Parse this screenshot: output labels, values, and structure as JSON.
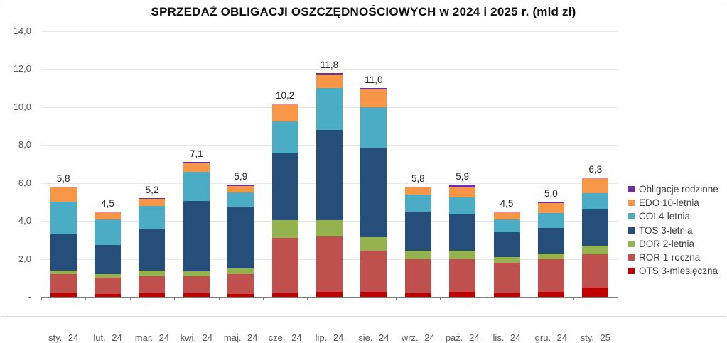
{
  "title": "SPRZEDAŻ OBLIGACJI OSZCZĘDNOŚCIOWYCH w 2024 i 2025 r. (mld zł)",
  "palette": {
    "gridline": "#e8e8e8",
    "axis_line": "#7f7f7f",
    "axis_text": "#595959",
    "value_label_text": "#262626",
    "legend_text": "#404040",
    "background": "#ffffff"
  },
  "chart_data": {
    "type": "bar",
    "stacked": true,
    "title": "SPRZEDAŻ OBLIGACJI OSZCZĘDNOŚCIOWYCH w 2024 i 2025 r. (mld zł)",
    "unit": "mld zł",
    "grid": true,
    "legend_position": "right",
    "categories": [
      "sty. 24",
      "lut. 24",
      "mar. 24",
      "kwi. 24",
      "maj. 24",
      "cze. 24",
      "lip. 24",
      "sie. 24",
      "wrz. 24",
      "paź. 24",
      "lis. 24",
      "gru. 24",
      "sty. 25"
    ],
    "totals": [
      5.8,
      4.5,
      5.2,
      7.1,
      5.9,
      10.2,
      11.8,
      11.0,
      5.8,
      5.9,
      4.5,
      5.0,
      6.3
    ],
    "totals_labels": [
      "5,8",
      "4,5",
      "5,2",
      "7,1",
      "5,9",
      "10,2",
      "11,8",
      "11,0",
      "5,8",
      "5,9",
      "4,5",
      "5,0",
      "6,3"
    ],
    "y_axis": {
      "min": 0,
      "max": 14,
      "step": 2,
      "tick_labels_top_to_bottom": [
        "14,0",
        "12,0",
        "10,0",
        "8,0",
        "6,0",
        "4,0",
        "2,0",
        "-"
      ]
    },
    "series": [
      {
        "name": "Obligacje rodzinne",
        "color": "#7030a0",
        "values": [
          0.05,
          0.05,
          0.05,
          0.05,
          0.05,
          0.05,
          0.1,
          0.05,
          0.05,
          0.15,
          0.05,
          0.05,
          0.05
        ]
      },
      {
        "name": "EDO 10-letnia",
        "color": "#f79646",
        "values": [
          0.75,
          0.35,
          0.35,
          0.45,
          0.35,
          0.9,
          0.7,
          0.95,
          0.35,
          0.5,
          0.35,
          0.55,
          0.8
        ]
      },
      {
        "name": "COI 4-letnia",
        "color": "#4bacc6",
        "values": [
          1.7,
          1.35,
          1.2,
          1.55,
          0.75,
          1.7,
          2.2,
          2.15,
          0.9,
          0.9,
          0.7,
          0.75,
          0.85
        ]
      },
      {
        "name": "TOS 3-letnia",
        "color": "#254e7b",
        "values": [
          1.9,
          1.55,
          2.2,
          3.7,
          3.25,
          3.5,
          4.75,
          4.7,
          2.05,
          1.9,
          1.3,
          1.35,
          1.9
        ]
      },
      {
        "name": "DOR 2-letnia",
        "color": "#94b34f",
        "values": [
          0.2,
          0.2,
          0.3,
          0.25,
          0.3,
          0.95,
          0.85,
          0.7,
          0.45,
          0.45,
          0.3,
          0.3,
          0.45
        ]
      },
      {
        "name": "ROR 1-roczna",
        "color": "#c0504d",
        "values": [
          1.0,
          0.85,
          0.9,
          0.9,
          1.05,
          2.9,
          2.95,
          2.2,
          1.8,
          1.75,
          1.6,
          1.75,
          1.75
        ]
      },
      {
        "name": "OTS 3-miesięczna",
        "color": "#c00000",
        "values": [
          0.2,
          0.15,
          0.2,
          0.2,
          0.15,
          0.2,
          0.25,
          0.25,
          0.2,
          0.25,
          0.2,
          0.25,
          0.5
        ]
      }
    ]
  }
}
